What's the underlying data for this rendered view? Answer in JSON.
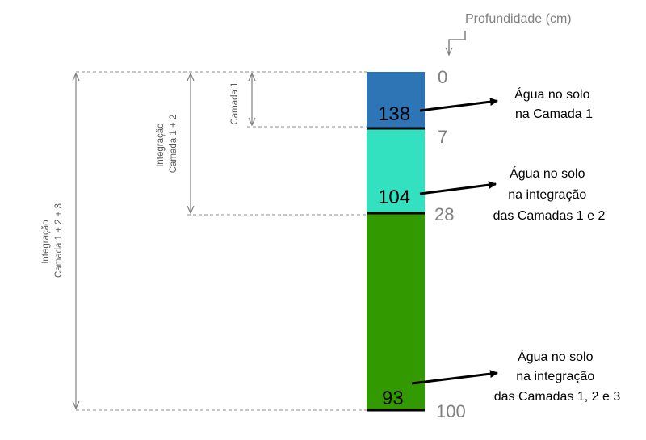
{
  "unit_label": "Profundidade (cm)",
  "depths": [
    "0",
    "7",
    "28",
    "100"
  ],
  "layers": [
    {
      "value": "138",
      "color": "#2E75B6"
    },
    {
      "value": "104",
      "color": "#33E0C0"
    },
    {
      "value": "93",
      "color": "#339900"
    }
  ],
  "annotations": [
    {
      "lines": [
        "Água no solo",
        "na Camada 1"
      ]
    },
    {
      "lines": [
        "Água no solo",
        "na integração",
        "das Camadas 1 e 2"
      ]
    },
    {
      "lines": [
        "Água no solo",
        "na integração",
        "das Camadas 1, 2 e 3"
      ]
    }
  ],
  "brackets": [
    {
      "lines": [
        "Camada 1"
      ]
    },
    {
      "lines": [
        "Integração",
        "Camada 1 + 2"
      ]
    },
    {
      "lines": [
        "Integração",
        "Camada 1 + 2 + 3"
      ]
    }
  ]
}
